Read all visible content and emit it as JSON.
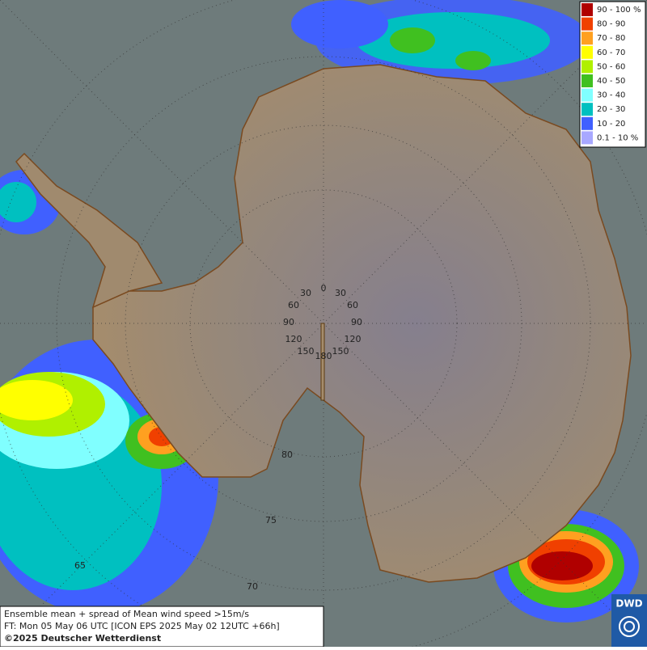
{
  "legend": {
    "items": [
      {
        "label": "90 - 100 %",
        "color": "#b00000"
      },
      {
        "label": "80 - 90",
        "color": "#f04000"
      },
      {
        "label": "70 - 80",
        "color": "#ffa020"
      },
      {
        "label": "60 - 70",
        "color": "#ffff00"
      },
      {
        "label": "50 - 60",
        "color": "#b0f000"
      },
      {
        "label": "40 - 50",
        "color": "#40c020"
      },
      {
        "label": "30 - 40",
        "color": "#80ffff"
      },
      {
        "label": "20 - 30",
        "color": "#00c0c0"
      },
      {
        "label": "10 - 20",
        "color": "#4060ff"
      },
      {
        "label": "0.1 - 10 %",
        "color": "#a8a8ff"
      }
    ]
  },
  "map": {
    "longitude_labels": [
      "0",
      "30",
      "30",
      "60",
      "60",
      "90",
      "90",
      "120",
      "120",
      "150",
      "150",
      "180"
    ],
    "latitude_labels": [
      "80",
      "75",
      "70",
      "65"
    ]
  },
  "footer": {
    "lines": [
      "Ensemble mean + spread of Mean wind speed >15m/s",
      "FT: Mon 05 May 06 UTC [ICON EPS 2025 May 02 12UTC +66h]",
      "©2025 Deutscher Wetterdienst"
    ]
  },
  "logo": {
    "text": "DWD"
  }
}
